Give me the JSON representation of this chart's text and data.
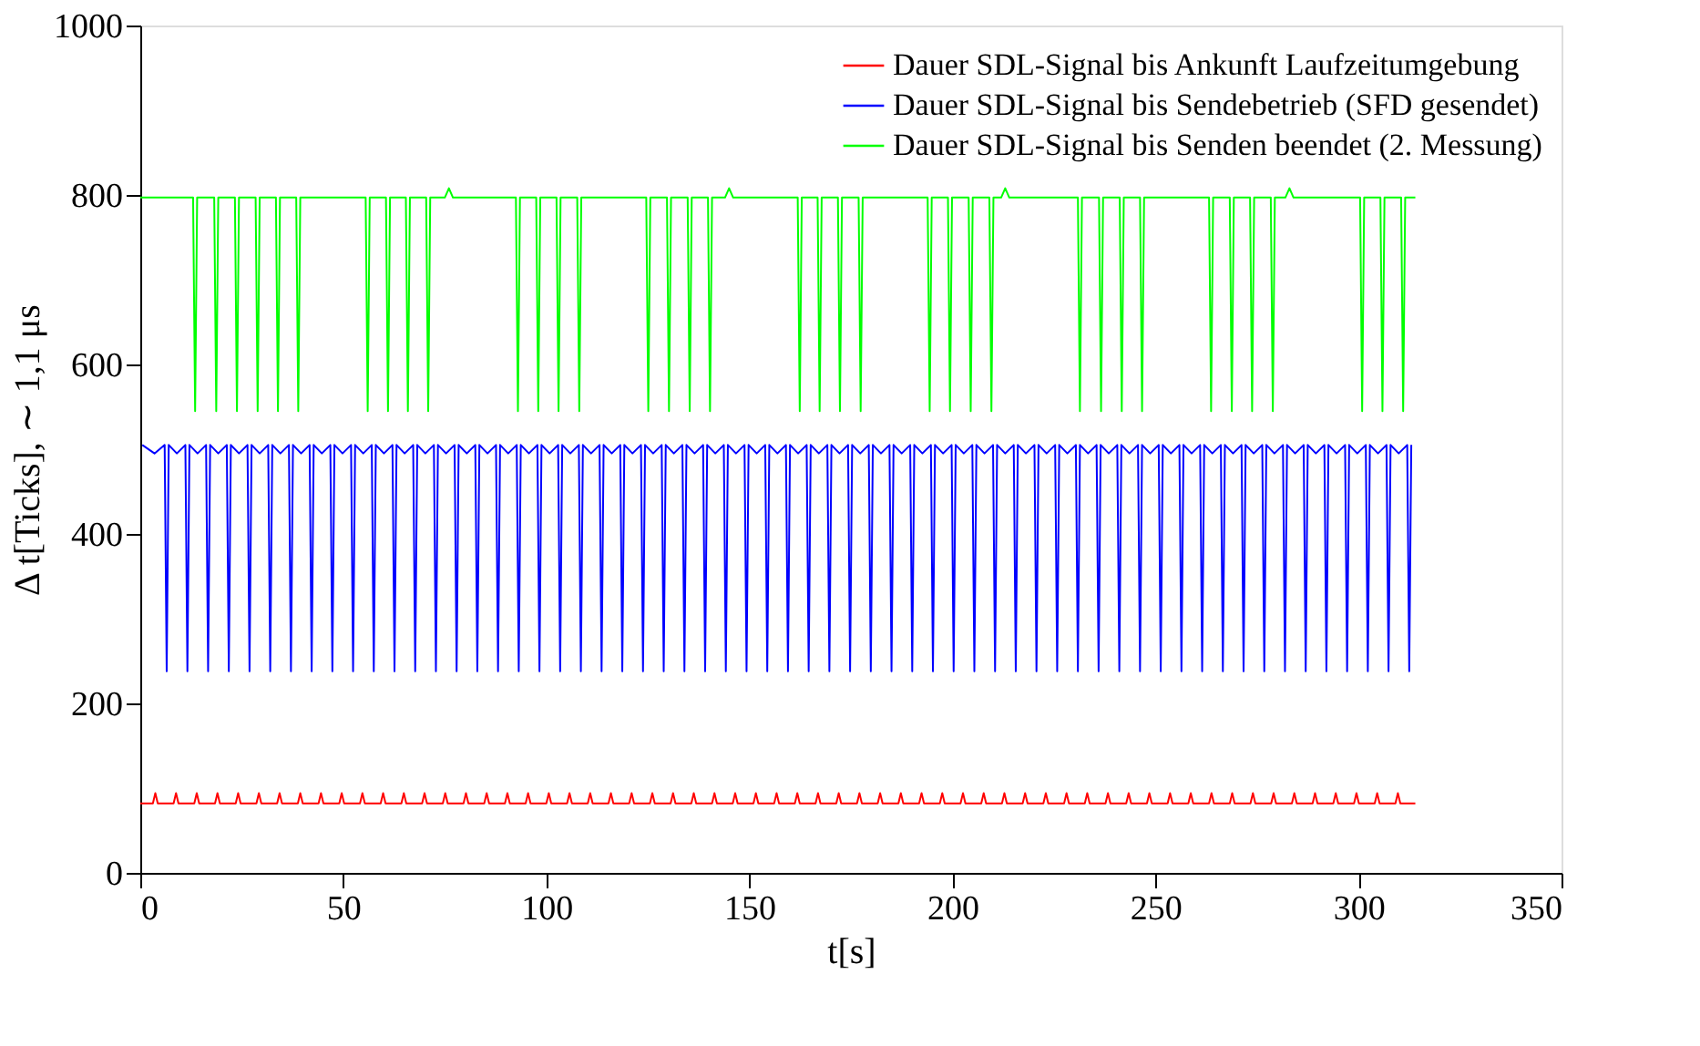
{
  "chart_data": {
    "type": "line",
    "xlabel": "t[s]",
    "ylabel": "Δ t[Ticks], ∼ 1,1 μs",
    "xlim": [
      0,
      350
    ],
    "xticks": [
      0,
      50,
      100,
      150,
      200,
      250,
      300,
      350
    ],
    "ylim": [
      0,
      1000
    ],
    "yticks": [
      0,
      200,
      400,
      600,
      800,
      1000
    ],
    "grid": false,
    "legend": "top right",
    "line_style": "solid",
    "marker": "none",
    "series": [
      {
        "name": "Dauer SDL-Signal bis Ankunft Laufzeitumgebung",
        "color": "#ff0000",
        "x": [
          0,
          3.1,
          3.7,
          4.3,
          8.2,
          8.8,
          9.4,
          13.3,
          13.9,
          14.5,
          18.4,
          19,
          19.6,
          23.5,
          24.1,
          24.7,
          28.6,
          29.2,
          29.8,
          33.7,
          34.3,
          34.9,
          38.8,
          39.4,
          40,
          43.9,
          44.5,
          45.1,
          49,
          49.6,
          50.2,
          54.1,
          54.7,
          55.3,
          59.2,
          59.8,
          60.4,
          64.3,
          64.9,
          65.5,
          69.4,
          70,
          70.6,
          74.5,
          75.1,
          75.7,
          79.6,
          80.2,
          80.8,
          84.7,
          85.3,
          85.9,
          89.8,
          90.4,
          91,
          94.9,
          95.5,
          96.1,
          100,
          100.6,
          101.2,
          105.1,
          105.7,
          106.3,
          110.2,
          110.8,
          111.4,
          115.3,
          115.9,
          116.5,
          120.4,
          121,
          121.6,
          125.5,
          126.1,
          126.7,
          130.6,
          131.2,
          131.8,
          135.7,
          136.3,
          136.9,
          140.8,
          141.4,
          142,
          145.9,
          146.5,
          147.1,
          151,
          151.6,
          152.2,
          156.1,
          156.7,
          157.3,
          161.2,
          161.8,
          162.4,
          166.3,
          166.9,
          167.5,
          171.4,
          172,
          172.6,
          176.5,
          177.1,
          177.7,
          181.6,
          182.2,
          182.8,
          186.7,
          187.3,
          187.9,
          191.8,
          192.4,
          193,
          196.9,
          197.5,
          198.1,
          202,
          202.6,
          203.2,
          207.1,
          207.7,
          208.3,
          212.2,
          212.8,
          213.4,
          217.3,
          217.9,
          218.5,
          222.4,
          223,
          223.6,
          227.5,
          228.1,
          228.7,
          232.6,
          233.2,
          233.8,
          237.7,
          238.3,
          238.9,
          242.8,
          243.4,
          244,
          247.9,
          248.5,
          249.1,
          253,
          253.6,
          254.2,
          258.1,
          258.7,
          259.3,
          263.2,
          263.8,
          264.4,
          268.3,
          268.9,
          269.5,
          273.4,
          274,
          274.6,
          278.5,
          279.1,
          279.7,
          283.6,
          284.2,
          284.8,
          288.7,
          289.3,
          289.9,
          293.8,
          294.4,
          295,
          298.9,
          299.5,
          300.1,
          304,
          304.6,
          305.2,
          309.1,
          309.7,
          310.3,
          314
        ],
        "values": [
          82,
          82,
          94,
          82,
          82,
          94,
          82,
          82,
          94,
          82,
          82,
          94,
          82,
          82,
          94,
          82,
          82,
          94,
          82,
          82,
          94,
          82,
          82,
          94,
          82,
          82,
          94,
          82,
          82,
          94,
          82,
          82,
          94,
          82,
          82,
          94,
          82,
          82,
          94,
          82,
          82,
          94,
          82,
          82,
          94,
          82,
          82,
          94,
          82,
          82,
          94,
          82,
          82,
          94,
          82,
          82,
          94,
          82,
          82,
          94,
          82,
          82,
          94,
          82,
          82,
          94,
          82,
          82,
          94,
          82,
          82,
          94,
          82,
          82,
          94,
          82,
          82,
          94,
          82,
          82,
          94,
          82,
          82,
          94,
          82,
          82,
          94,
          82,
          82,
          94,
          82,
          82,
          94,
          82,
          82,
          94,
          82,
          82,
          94,
          82,
          82,
          94,
          82,
          82,
          94,
          82,
          82,
          94,
          82,
          82,
          94,
          82,
          82,
          94,
          82,
          82,
          94,
          82,
          82,
          94,
          82,
          82,
          94,
          82,
          82,
          94,
          82,
          82,
          94,
          82,
          82,
          94,
          82,
          82,
          94,
          82,
          82,
          94,
          82,
          82,
          94,
          82,
          82,
          94,
          82,
          82,
          94,
          82,
          82,
          94,
          82,
          82,
          94,
          82,
          82,
          94,
          82,
          82,
          94,
          82,
          82,
          94,
          82,
          82,
          94,
          82,
          82,
          94,
          82,
          82,
          94,
          82,
          82,
          94,
          82,
          82,
          94,
          82,
          82,
          94,
          82,
          82,
          94,
          82,
          82
        ]
      },
      {
        "name": "Dauer SDL-Signal bis Sendebetrieb (SFD gesendet)",
        "color": "#0000ff",
        "x": [
          0.5,
          3.5,
          6,
          6.5,
          7,
          9,
          11.1,
          11.6,
          12.1,
          14.1,
          16.2,
          16.7,
          17.2,
          19.2,
          21.3,
          21.8,
          22.3,
          24.3,
          26.4,
          26.9,
          27.4,
          29.4,
          31.5,
          32,
          32.5,
          34.5,
          36.6,
          37.1,
          37.6,
          39.6,
          41.7,
          42.2,
          42.7,
          44.7,
          46.8,
          47.3,
          47.8,
          49.8,
          51.9,
          52.4,
          52.9,
          54.9,
          57,
          57.5,
          58,
          60,
          62.1,
          62.6,
          63.1,
          65.1,
          67.2,
          67.7,
          68.2,
          70.2,
          72.3,
          72.8,
          73.3,
          75.3,
          77.4,
          77.9,
          78.4,
          80.4,
          82.5,
          83,
          83.5,
          85.5,
          87.6,
          88.1,
          88.6,
          90.6,
          92.7,
          93.2,
          93.7,
          95.7,
          97.8,
          98.3,
          98.8,
          100.8,
          102.9,
          103.4,
          103.9,
          105.9,
          108,
          108.5,
          109,
          111,
          113.1,
          113.6,
          114.1,
          116.1,
          118.2,
          118.7,
          119.2,
          121.2,
          123.3,
          123.8,
          124.3,
          126.3,
          128.4,
          128.9,
          129.4,
          131.4,
          133.5,
          134,
          134.5,
          136.5,
          138.6,
          139.1,
          139.6,
          141.6,
          143.7,
          144.2,
          144.7,
          146.7,
          148.8,
          149.3,
          149.8,
          151.8,
          153.9,
          154.4,
          154.9,
          156.9,
          159,
          159.5,
          160,
          162,
          164.1,
          164.6,
          165.1,
          167.1,
          169.2,
          169.7,
          170.2,
          172.2,
          174.3,
          174.8,
          175.3,
          177.3,
          179.4,
          179.9,
          180.4,
          182.4,
          184.5,
          185,
          185.5,
          187.5,
          189.6,
          190.1,
          190.6,
          192.6,
          194.7,
          195.2,
          195.7,
          197.7,
          199.8,
          200.3,
          200.8,
          202.8,
          204.9,
          205.4,
          205.9,
          207.9,
          210,
          210.5,
          211,
          213,
          215.1,
          215.6,
          216.1,
          218.1,
          220.2,
          220.7,
          221.2,
          223.2,
          225.3,
          225.8,
          226.3,
          228.3,
          230.4,
          230.9,
          231.4,
          233.4,
          235.5,
          236,
          236.5,
          238.5,
          240.6,
          241.1,
          241.6,
          243.6,
          245.7,
          246.2,
          246.7,
          248.7,
          250.8,
          251.3,
          251.8,
          253.8,
          255.9,
          256.4,
          256.9,
          258.9,
          261,
          261.5,
          262,
          264,
          266.1,
          266.6,
          267.1,
          269.1,
          271.2,
          271.7,
          272.2,
          274.2,
          276.3,
          276.8,
          277.3,
          279.3,
          281.4,
          281.9,
          282.4,
          284.4,
          286.5,
          287,
          287.5,
          289.5,
          291.6,
          292.1,
          292.6,
          294.6,
          296.7,
          297.2,
          297.7,
          299.7,
          301.8,
          302.3,
          302.8,
          304.8,
          306.9,
          307.4,
          307.9,
          309.9,
          312,
          312.5,
          313
        ],
        "values": [
          505,
          495,
          505,
          238,
          505,
          495,
          505,
          238,
          505,
          495,
          505,
          238,
          505,
          495,
          505,
          238,
          505,
          495,
          505,
          238,
          505,
          495,
          505,
          238,
          505,
          495,
          505,
          238,
          505,
          495,
          505,
          238,
          505,
          495,
          505,
          238,
          505,
          495,
          505,
          238,
          505,
          495,
          505,
          238,
          505,
          495,
          505,
          238,
          505,
          495,
          505,
          238,
          505,
          495,
          505,
          238,
          505,
          495,
          505,
          238,
          505,
          495,
          505,
          238,
          505,
          495,
          505,
          238,
          505,
          495,
          505,
          238,
          505,
          495,
          505,
          238,
          505,
          495,
          505,
          238,
          505,
          495,
          505,
          238,
          505,
          495,
          505,
          238,
          505,
          495,
          505,
          238,
          505,
          495,
          505,
          238,
          505,
          495,
          505,
          238,
          505,
          495,
          505,
          238,
          505,
          495,
          505,
          238,
          505,
          495,
          505,
          238,
          505,
          495,
          505,
          238,
          505,
          495,
          505,
          238,
          505,
          495,
          505,
          238,
          505,
          495,
          505,
          238,
          505,
          495,
          505,
          238,
          505,
          495,
          505,
          238,
          505,
          495,
          505,
          238,
          505,
          495,
          505,
          238,
          505,
          495,
          505,
          238,
          505,
          495,
          505,
          238,
          505,
          495,
          505,
          238,
          505,
          495,
          505,
          238,
          505,
          495,
          505,
          238,
          505,
          495,
          505,
          238,
          505,
          495,
          505,
          238,
          505,
          495,
          505,
          238,
          505,
          495,
          505,
          238,
          505,
          495,
          505,
          238,
          505,
          495,
          505,
          238,
          505,
          495,
          505,
          238,
          505,
          495,
          505,
          238,
          505,
          495,
          505,
          238,
          505,
          495,
          505,
          238,
          505,
          495,
          505,
          238,
          505,
          495,
          505,
          238,
          505,
          495,
          505,
          238,
          505,
          495,
          505,
          238,
          505,
          495,
          505,
          238,
          505,
          495,
          505,
          238,
          505,
          495,
          505,
          238,
          505,
          495,
          505,
          238,
          505,
          495,
          505,
          238,
          505,
          495,
          505,
          238,
          505
        ]
      },
      {
        "name": "Dauer SDL-Signal bis Senden beendet (2. Messung)",
        "color": "#00ff00",
        "x": [
          0,
          13,
          13.5,
          14,
          18.2,
          18.7,
          19.2,
          23.3,
          23.8,
          24.3,
          28.4,
          28.9,
          29.4,
          33.4,
          33.9,
          34.4,
          38.4,
          38.9,
          39.4,
          55.5,
          56,
          56.5,
          60.5,
          61,
          61.5,
          65.4,
          65.9,
          66.4,
          70.4,
          70.9,
          71.4,
          75,
          76,
          77,
          92.5,
          93,
          93.5,
          97.5,
          98,
          98.5,
          102.5,
          103,
          103.5,
          107.6,
          108.1,
          108.6,
          124.6,
          125.1,
          125.6,
          129.7,
          130.2,
          130.7,
          134.8,
          135.3,
          135.8,
          139.8,
          140.3,
          140.8,
          144,
          145,
          146,
          161.9,
          162.4,
          162.9,
          166.8,
          167.3,
          167.8,
          171.8,
          172.3,
          172.8,
          176.9,
          177.4,
          177.9,
          193.9,
          194.4,
          194.9,
          198.9,
          199.4,
          199.9,
          204,
          204.5,
          205,
          209.1,
          209.6,
          210.1,
          212,
          213,
          214,
          230.9,
          231.4,
          231.9,
          236.1,
          236.6,
          237.1,
          241.2,
          241.7,
          242.2,
          246.2,
          246.7,
          247.2,
          263.2,
          263.7,
          264.2,
          268.3,
          268.8,
          269.3,
          273.3,
          273.8,
          274.3,
          278.4,
          278.9,
          279.4,
          282,
          283,
          284,
          300.4,
          300.9,
          301.4,
          305.4,
          305.9,
          306.4,
          310.5,
          311,
          311.5,
          314
        ],
        "values": [
          797,
          797,
          545,
          797,
          797,
          545,
          797,
          797,
          545,
          797,
          797,
          545,
          797,
          797,
          545,
          797,
          797,
          545,
          797,
          797,
          545,
          797,
          797,
          545,
          797,
          797,
          545,
          797,
          797,
          545,
          797,
          797,
          808,
          797,
          797,
          545,
          797,
          797,
          545,
          797,
          797,
          545,
          797,
          797,
          545,
          797,
          797,
          545,
          797,
          797,
          545,
          797,
          797,
          545,
          797,
          797,
          545,
          797,
          797,
          808,
          797,
          797,
          545,
          797,
          797,
          545,
          797,
          797,
          545,
          797,
          797,
          545,
          797,
          797,
          545,
          797,
          797,
          545,
          797,
          797,
          545,
          797,
          797,
          545,
          797,
          797,
          808,
          797,
          797,
          545,
          797,
          797,
          545,
          797,
          797,
          545,
          797,
          797,
          545,
          797,
          797,
          545,
          797,
          797,
          545,
          797,
          797,
          545,
          797,
          797,
          545,
          797,
          797,
          808,
          797,
          797,
          545,
          797,
          797,
          545,
          797,
          797,
          545,
          797,
          797
        ]
      }
    ]
  }
}
